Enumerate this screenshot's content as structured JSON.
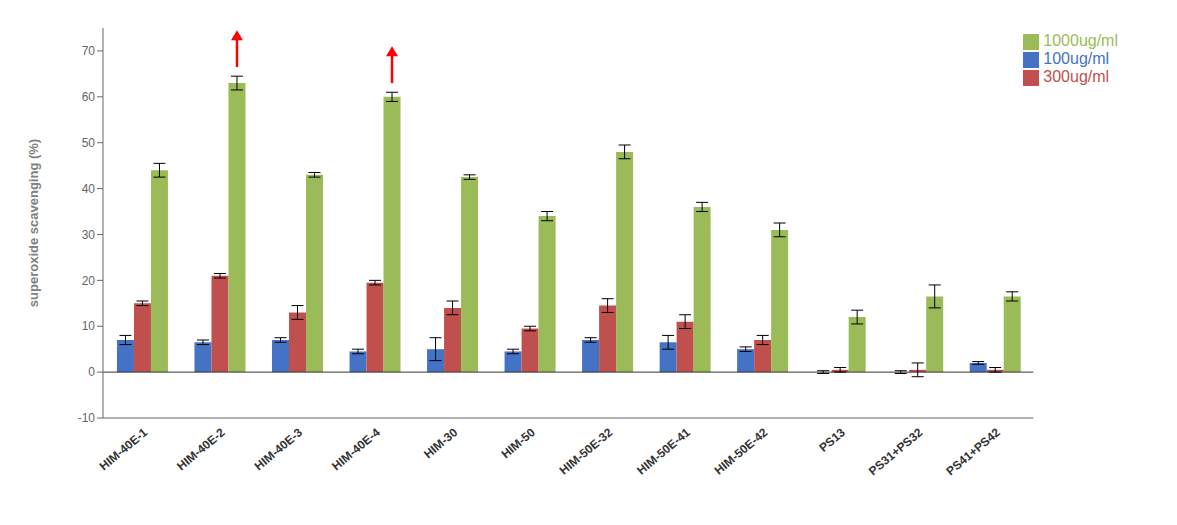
{
  "chart_data": {
    "type": "bar",
    "categories": [
      "HIM-40E-1",
      "HIM-40E-2",
      "HIM-40E-3",
      "HIM-40E-4",
      "HIM-30",
      "HIM-50",
      "HIM-50E-32",
      "HIM-50E-41",
      "HIM-50E-42",
      "PS13",
      "PS31+PS32",
      "PS41+PS42"
    ],
    "series": [
      {
        "name": "100ug/ml",
        "color": "#4472C4",
        "values": [
          7.0,
          6.5,
          7.0,
          4.5,
          5.0,
          4.5,
          7.0,
          6.5,
          5.0,
          0.0,
          0.0,
          2.0
        ],
        "errors": [
          1.0,
          0.5,
          0.5,
          0.5,
          2.5,
          0.5,
          0.5,
          1.5,
          0.5,
          0.3,
          0.3,
          0.3
        ]
      },
      {
        "name": "300ug/ml",
        "color": "#C0504D",
        "values": [
          15.0,
          21.0,
          13.0,
          19.5,
          14.0,
          9.5,
          14.5,
          11.0,
          7.0,
          0.5,
          0.5,
          0.5
        ],
        "errors": [
          0.5,
          0.5,
          1.5,
          0.5,
          1.5,
          0.5,
          1.5,
          1.5,
          1.0,
          0.5,
          1.5,
          0.5
        ]
      },
      {
        "name": "1000ug/ml",
        "color": "#9BBB59",
        "values": [
          44.0,
          63.0,
          43.0,
          60.0,
          42.5,
          34.0,
          48.0,
          36.0,
          31.0,
          12.0,
          16.5,
          16.5
        ],
        "errors": [
          1.5,
          1.5,
          0.5,
          1.0,
          0.5,
          1.0,
          1.5,
          1.0,
          1.5,
          1.5,
          2.5,
          1.0
        ]
      }
    ],
    "ylabel": "superoxide scavenging (%)",
    "ylim": [
      -10,
      75
    ],
    "yticks": [
      -10,
      0,
      10,
      20,
      30,
      40,
      50,
      60,
      70
    ],
    "grid": false,
    "legend": "upper right",
    "annotations": [
      {
        "type": "arrow",
        "category": "HIM-40E-2",
        "series": "1000ug/ml",
        "y_start": 66.5,
        "y_end": 74.5,
        "color": "red"
      },
      {
        "type": "arrow",
        "category": "HIM-40E-4",
        "series": "1000ug/ml",
        "y_start": 63.0,
        "y_end": 71.0,
        "color": "red"
      }
    ]
  }
}
